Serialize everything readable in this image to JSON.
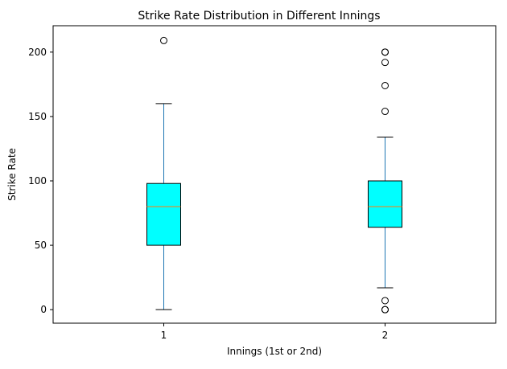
{
  "chart_data": {
    "type": "box",
    "title": "Strike Rate Distribution in Different Innings",
    "xlabel": "Innings (1st or 2nd)",
    "ylabel": "Strike Rate",
    "ylim": [
      -10.5,
      220.5
    ],
    "yticks": [
      0,
      50,
      100,
      150,
      200
    ],
    "categories": [
      "1",
      "2"
    ],
    "boxes": [
      {
        "category": "1",
        "whisker_low": 0,
        "q1": 50,
        "median": 80,
        "q3": 98,
        "whisker_high": 160,
        "outliers": [
          209
        ]
      },
      {
        "category": "2",
        "whisker_low": 17,
        "q1": 64,
        "median": 80,
        "q3": 100,
        "whisker_high": 134,
        "outliers": [
          200,
          200,
          192,
          174,
          154,
          7,
          0,
          0
        ]
      }
    ],
    "colors": {
      "box_fill": "#00ffff",
      "box_edge": "#000000",
      "whisker": "#1f77b4",
      "median": "#ff7f0e",
      "caps": "#000000"
    },
    "grid": false
  }
}
